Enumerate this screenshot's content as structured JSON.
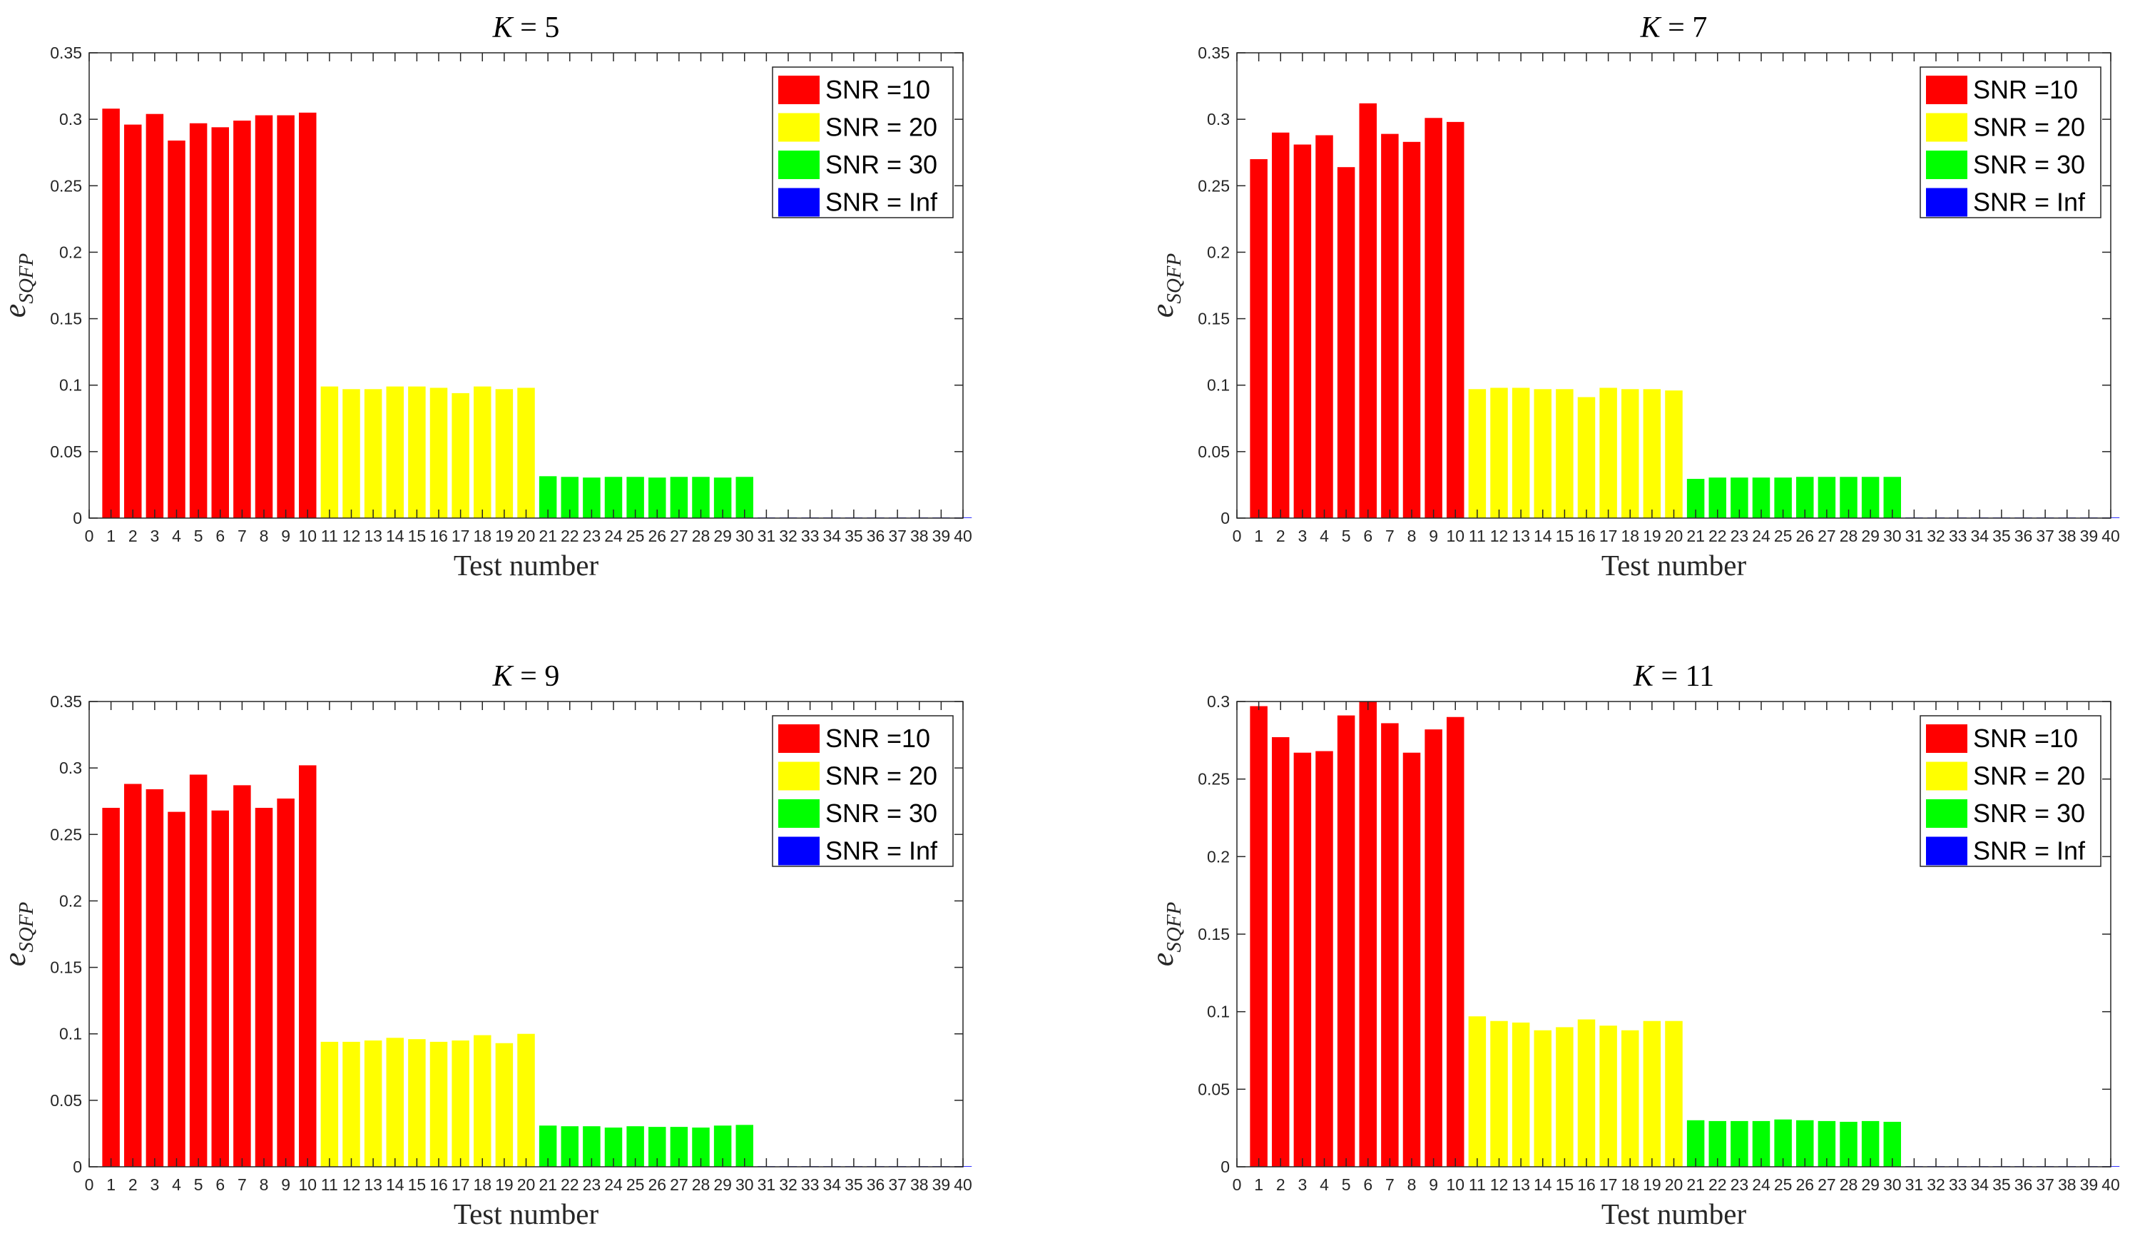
{
  "figure": {
    "legend": [
      {
        "label": "SNR =10",
        "color": "#ff0000"
      },
      {
        "label": "SNR = 20",
        "color": "#ffff00"
      },
      {
        "label": "SNR = 30",
        "color": "#00ff00"
      },
      {
        "label": "SNR = Inf",
        "color": "#0000ff"
      }
    ],
    "xticks": [
      "0",
      "1",
      "2",
      "3",
      "4",
      "5",
      "6",
      "7",
      "8",
      "9",
      "10",
      "11",
      "12",
      "13",
      "14",
      "15",
      "16",
      "17",
      "18",
      "19",
      "20",
      "21",
      "22",
      "23",
      "24",
      "25",
      "26",
      "27",
      "28",
      "29",
      "30",
      "31",
      "32",
      "33",
      "34",
      "35",
      "36",
      "37",
      "38",
      "39",
      "40"
    ]
  },
  "chart_data": [
    {
      "type": "bar",
      "title_var": "K",
      "title_eq": " = ",
      "title_num": "5",
      "xlabel": "Test number",
      "ylabel_main": "e",
      "ylabel_sub": "SQFP",
      "xlim": [
        0,
        40
      ],
      "ylim": [
        0,
        0.35
      ],
      "yticks": [
        "0",
        "0.05",
        "0.1",
        "0.15",
        "0.2",
        "0.25",
        "0.3",
        "0.35"
      ],
      "legend_position": "top-right",
      "series": [
        {
          "name": "SNR =10",
          "x": [
            1,
            2,
            3,
            4,
            5,
            6,
            7,
            8,
            9,
            10
          ],
          "values": [
            0.308,
            0.296,
            0.304,
            0.284,
            0.297,
            0.294,
            0.299,
            0.303,
            0.303,
            0.305
          ]
        },
        {
          "name": "SNR = 20",
          "x": [
            11,
            12,
            13,
            14,
            15,
            16,
            17,
            18,
            19,
            20
          ],
          "values": [
            0.099,
            0.097,
            0.097,
            0.099,
            0.099,
            0.098,
            0.094,
            0.099,
            0.097,
            0.098
          ]
        },
        {
          "name": "SNR = 30",
          "x": [
            21,
            22,
            23,
            24,
            25,
            26,
            27,
            28,
            29,
            30
          ],
          "values": [
            0.0315,
            0.031,
            0.0305,
            0.031,
            0.031,
            0.0305,
            0.031,
            0.031,
            0.0305,
            0.031
          ]
        },
        {
          "name": "SNR = Inf",
          "x": [
            31,
            32,
            33,
            34,
            35,
            36,
            37,
            38,
            39,
            40
          ],
          "values": [
            0,
            0,
            0,
            0,
            0,
            0,
            0,
            0,
            0,
            0
          ]
        }
      ]
    },
    {
      "type": "bar",
      "title_var": "K",
      "title_eq": " = ",
      "title_num": "7",
      "xlabel": "Test number",
      "ylabel_main": "e",
      "ylabel_sub": "SQFP",
      "xlim": [
        0,
        40
      ],
      "ylim": [
        0,
        0.35
      ],
      "yticks": [
        "0",
        "0.05",
        "0.1",
        "0.15",
        "0.2",
        "0.25",
        "0.3",
        "0.35"
      ],
      "legend_position": "top-right",
      "series": [
        {
          "name": "SNR =10",
          "x": [
            1,
            2,
            3,
            4,
            5,
            6,
            7,
            8,
            9,
            10
          ],
          "values": [
            0.27,
            0.29,
            0.281,
            0.288,
            0.264,
            0.312,
            0.289,
            0.283,
            0.301,
            0.298
          ]
        },
        {
          "name": "SNR = 20",
          "x": [
            11,
            12,
            13,
            14,
            15,
            16,
            17,
            18,
            19,
            20
          ],
          "values": [
            0.097,
            0.098,
            0.098,
            0.097,
            0.097,
            0.091,
            0.098,
            0.097,
            0.097,
            0.096
          ]
        },
        {
          "name": "SNR = 30",
          "x": [
            21,
            22,
            23,
            24,
            25,
            26,
            27,
            28,
            29,
            30
          ],
          "values": [
            0.0295,
            0.0305,
            0.0305,
            0.0305,
            0.0305,
            0.031,
            0.031,
            0.031,
            0.031,
            0.031
          ]
        },
        {
          "name": "SNR = Inf",
          "x": [
            31,
            32,
            33,
            34,
            35,
            36,
            37,
            38,
            39,
            40
          ],
          "values": [
            0,
            0,
            0,
            0,
            0,
            0,
            0,
            0,
            0,
            0
          ]
        }
      ]
    },
    {
      "type": "bar",
      "title_var": "K",
      "title_eq": " = ",
      "title_num": "9",
      "xlabel": "Test number",
      "ylabel_main": "e",
      "ylabel_sub": "SQFP",
      "xlim": [
        0,
        40
      ],
      "ylim": [
        0,
        0.35
      ],
      "yticks": [
        "0",
        "0.05",
        "0.1",
        "0.15",
        "0.2",
        "0.25",
        "0.3",
        "0.35"
      ],
      "legend_position": "top-right",
      "series": [
        {
          "name": "SNR =10",
          "x": [
            1,
            2,
            3,
            4,
            5,
            6,
            7,
            8,
            9,
            10
          ],
          "values": [
            0.27,
            0.288,
            0.284,
            0.267,
            0.295,
            0.268,
            0.287,
            0.27,
            0.277,
            0.302
          ]
        },
        {
          "name": "SNR = 20",
          "x": [
            11,
            12,
            13,
            14,
            15,
            16,
            17,
            18,
            19,
            20
          ],
          "values": [
            0.094,
            0.094,
            0.095,
            0.097,
            0.096,
            0.094,
            0.095,
            0.099,
            0.093,
            0.1
          ]
        },
        {
          "name": "SNR = 30",
          "x": [
            21,
            22,
            23,
            24,
            25,
            26,
            27,
            28,
            29,
            30
          ],
          "values": [
            0.031,
            0.0305,
            0.0305,
            0.0295,
            0.0305,
            0.03,
            0.03,
            0.0295,
            0.031,
            0.0315
          ]
        },
        {
          "name": "SNR = Inf",
          "x": [
            31,
            32,
            33,
            34,
            35,
            36,
            37,
            38,
            39,
            40
          ],
          "values": [
            0,
            0,
            0,
            0,
            0,
            0,
            0,
            0,
            0,
            0
          ]
        }
      ]
    },
    {
      "type": "bar",
      "title_var": "K",
      "title_eq": " = ",
      "title_num": "11",
      "xlabel": "Test number",
      "ylabel_main": "e",
      "ylabel_sub": "SQFP",
      "xlim": [
        0,
        40
      ],
      "ylim": [
        0,
        0.3
      ],
      "yticks": [
        "0",
        "0.05",
        "0.1",
        "0.15",
        "0.2",
        "0.25",
        "0.3"
      ],
      "legend_position": "top-right",
      "series": [
        {
          "name": "SNR =10",
          "x": [
            1,
            2,
            3,
            4,
            5,
            6,
            7,
            8,
            9,
            10
          ],
          "values": [
            0.297,
            0.277,
            0.267,
            0.268,
            0.291,
            0.3,
            0.286,
            0.267,
            0.282,
            0.29
          ]
        },
        {
          "name": "SNR = 20",
          "x": [
            11,
            12,
            13,
            14,
            15,
            16,
            17,
            18,
            19,
            20
          ],
          "values": [
            0.097,
            0.094,
            0.093,
            0.088,
            0.09,
            0.095,
            0.091,
            0.088,
            0.094,
            0.094
          ]
        },
        {
          "name": "SNR = 30",
          "x": [
            21,
            22,
            23,
            24,
            25,
            26,
            27,
            28,
            29,
            30
          ],
          "values": [
            0.03,
            0.0295,
            0.0295,
            0.0295,
            0.0305,
            0.03,
            0.0295,
            0.029,
            0.0295,
            0.029
          ]
        },
        {
          "name": "SNR = Inf",
          "x": [
            31,
            32,
            33,
            34,
            35,
            36,
            37,
            38,
            39,
            40
          ],
          "values": [
            0,
            0,
            0,
            0,
            0,
            0,
            0,
            0,
            0,
            0
          ]
        }
      ]
    }
  ]
}
